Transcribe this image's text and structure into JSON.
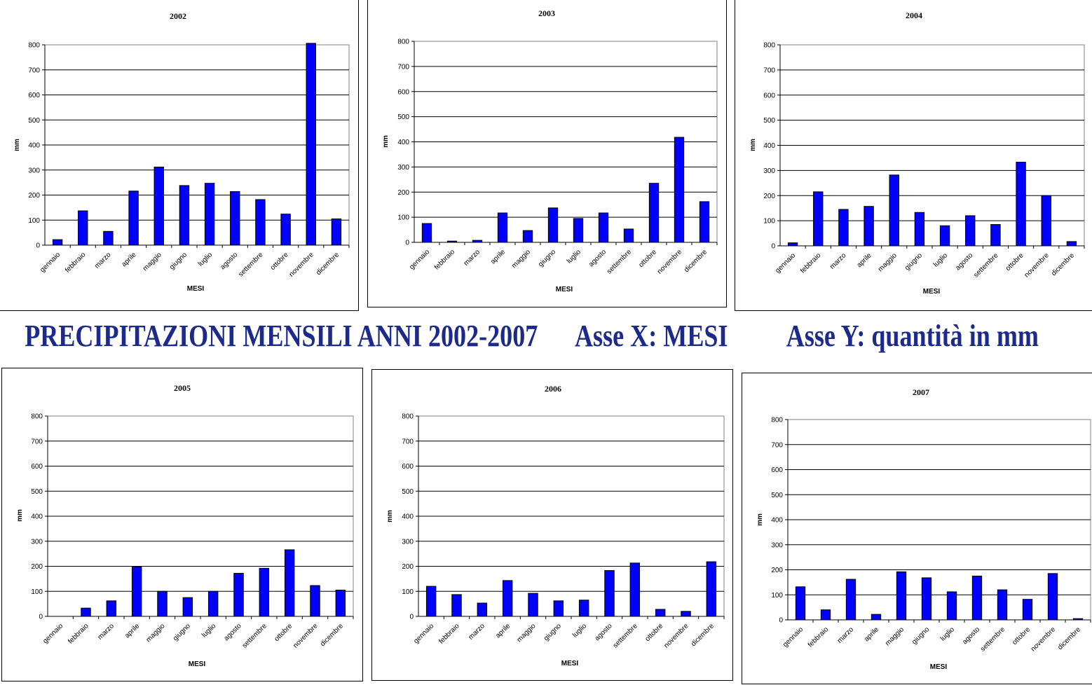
{
  "banner": {
    "main": "PRECIPITAZIONI MENSILI ANNI 2002-2007",
    "x_axis": "Asse X: MESI",
    "y_axis": "Asse Y: quantità in mm"
  },
  "chart_data": [
    {
      "type": "bar",
      "title": "2002",
      "xlabel": "MESI",
      "ylabel": "mm",
      "ylim": [
        0,
        800
      ],
      "yticks": [
        "0",
        "100",
        "200",
        "300",
        "400",
        "500",
        "600",
        "700",
        "800"
      ],
      "categories": [
        "gennaio",
        "febbraio",
        "marzo",
        "aprile",
        "maggio",
        "giugno",
        "luglio",
        "agosto",
        "settembre",
        "ottobre",
        "novembre",
        "dicembre"
      ],
      "values": [
        22,
        137,
        55,
        216,
        312,
        238,
        247,
        214,
        182,
        124,
        806,
        105
      ],
      "bar_color": "#0000ff",
      "grid": true
    },
    {
      "type": "bar",
      "title": "2003",
      "xlabel": "MESI",
      "ylabel": "mm",
      "ylim": [
        0,
        800
      ],
      "yticks": [
        "0",
        "100",
        "200",
        "300",
        "400",
        "500",
        "600",
        "700",
        "800"
      ],
      "categories": [
        "gennaio",
        "febbraio",
        "marzo",
        "aprile",
        "maggio",
        "giugno",
        "luglio",
        "agosto",
        "settembre",
        "ottobre",
        "novembre",
        "dicembre"
      ],
      "values": [
        75,
        5,
        8,
        117,
        47,
        137,
        95,
        117,
        53,
        235,
        418,
        162
      ],
      "bar_color": "#0000ff",
      "grid": true
    },
    {
      "type": "bar",
      "title": "2004",
      "xlabel": "MESI",
      "ylabel": "mm",
      "ylim": [
        0,
        800
      ],
      "yticks": [
        "0",
        "100",
        "200",
        "300",
        "400",
        "500",
        "600",
        "700",
        "800"
      ],
      "categories": [
        "gennaio",
        "febbraio",
        "marzo",
        "aprile",
        "maggio",
        "giugno",
        "luglio",
        "agosto",
        "settembre",
        "ottobre",
        "novembre",
        "dicembre"
      ],
      "values": [
        12,
        215,
        145,
        157,
        282,
        133,
        80,
        120,
        85,
        333,
        200,
        17
      ],
      "bar_color": "#0000ff",
      "grid": true
    },
    {
      "type": "bar",
      "title": "2005",
      "xlabel": "MESI",
      "ylabel": "mm",
      "ylim": [
        0,
        800
      ],
      "yticks": [
        "0",
        "100",
        "200",
        "300",
        "400",
        "500",
        "600",
        "700",
        "800"
      ],
      "categories": [
        "gennaio",
        "febbraio",
        "marzo",
        "aprile",
        "maggio",
        "giugno",
        "luglio",
        "agosto",
        "settembre",
        "ottobre",
        "novembre",
        "dicembre"
      ],
      "values": [
        0,
        33,
        62,
        198,
        100,
        75,
        100,
        172,
        192,
        266,
        123,
        105
      ],
      "bar_color": "#0000ff",
      "grid": true
    },
    {
      "type": "bar",
      "title": "2006",
      "xlabel": "MESI",
      "ylabel": "mm",
      "ylim": [
        0,
        800
      ],
      "yticks": [
        "0",
        "100",
        "200",
        "300",
        "400",
        "500",
        "600",
        "700",
        "800"
      ],
      "categories": [
        "gennaio",
        "febbraio",
        "marzo",
        "aprile",
        "maggio",
        "giugno",
        "luglio",
        "agosto",
        "settembre",
        "ottobre",
        "novembre",
        "dicembre"
      ],
      "values": [
        120,
        87,
        53,
        143,
        92,
        62,
        65,
        183,
        213,
        28,
        20,
        218
      ],
      "bar_color": "#0000ff",
      "grid": true
    },
    {
      "type": "bar",
      "title": "2007",
      "xlabel": "MESI",
      "ylabel": "mm",
      "ylim": [
        0,
        800
      ],
      "yticks": [
        "0",
        "100",
        "200",
        "300",
        "400",
        "500",
        "600",
        "700",
        "800"
      ],
      "categories": [
        "gennaio",
        "febbraio",
        "marzo",
        "aprile",
        "maggio",
        "giugno",
        "luglio",
        "agosto",
        "settembre",
        "ottobre",
        "novembre",
        "dicembre"
      ],
      "values": [
        132,
        40,
        162,
        22,
        192,
        168,
        112,
        175,
        120,
        82,
        185,
        5
      ],
      "bar_color": "#0000ff",
      "grid": true
    }
  ]
}
